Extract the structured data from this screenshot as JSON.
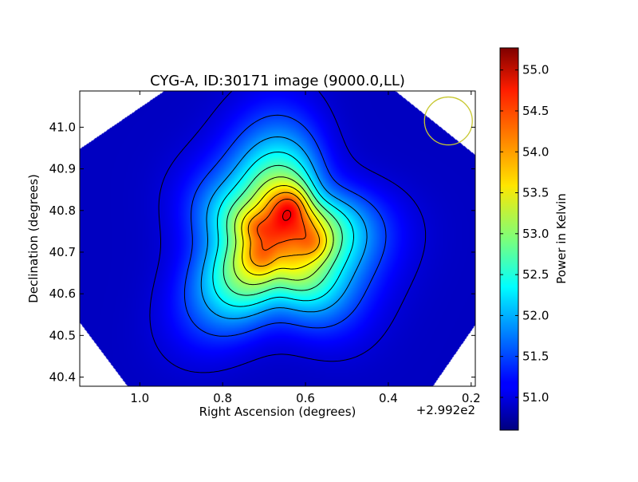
{
  "chart_data": {
    "type": "heatmap",
    "title": "CYG-A, ID:30171 image (9000.0,LL)",
    "xlabel": "Right Ascension (degrees)",
    "ylabel": "Declination (degrees)",
    "x_offset_label": "+2.992e2",
    "xlim": [
      1.145,
      0.19
    ],
    "ylim": [
      40.378,
      41.087
    ],
    "x_ticks": [
      1.0,
      0.8,
      0.6,
      0.4,
      0.2
    ],
    "x_tick_labels": [
      "1.0",
      "0.8",
      "0.6",
      "0.4",
      "0.2"
    ],
    "y_ticks": [
      40.4,
      40.5,
      40.6,
      40.7,
      40.8,
      40.9,
      41.0
    ],
    "y_tick_labels": [
      "40.4",
      "40.5",
      "40.6",
      "40.7",
      "40.8",
      "40.9",
      "41.0"
    ],
    "colorbar": {
      "label": "Power in Kelvin",
      "colormap": "jet",
      "range": [
        50.6,
        55.27
      ],
      "ticks": [
        51.0,
        51.5,
        52.0,
        52.5,
        53.0,
        53.5,
        54.0,
        54.5,
        55.0
      ],
      "tick_labels": [
        "51.0",
        "51.5",
        "52.0",
        "52.5",
        "53.0",
        "53.5",
        "54.0",
        "54.5",
        "55.0"
      ]
    },
    "background_level": 50.9,
    "contours": true,
    "sources": [
      {
        "x": 0.63,
        "y": 40.8,
        "peak": 55.27
      },
      {
        "x": 0.58,
        "y": 40.72,
        "peak": 54.6
      },
      {
        "x": 0.71,
        "y": 40.69,
        "peak": 54.4
      },
      {
        "x": 0.72,
        "y": 40.76,
        "peak": 54.5
      },
      {
        "x": 0.67,
        "y": 40.74,
        "peak": 54.2
      }
    ],
    "beam": {
      "x": 0.255,
      "y": 41.015,
      "color": "#c8c832"
    }
  }
}
